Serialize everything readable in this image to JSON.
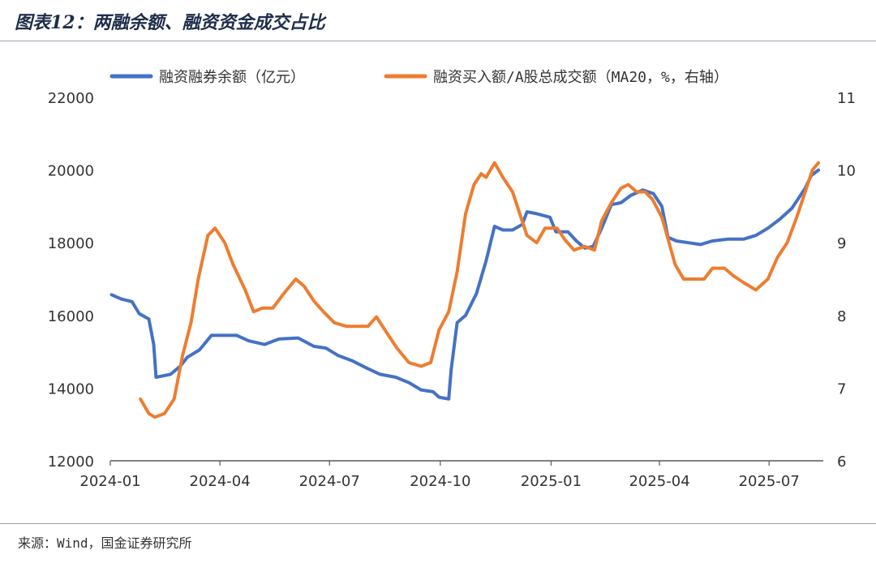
{
  "figure": {
    "title": "图表12：两融余额、融资资金成交占比",
    "source": "来源：Wind，国金证券研究所"
  },
  "chart_data": {
    "type": "line",
    "title": "图表12：两融余额、融资资金成交占比",
    "xlabel": "",
    "ylabel": "",
    "x_ticks": [
      "2024-01",
      "2024-04",
      "2024-07",
      "2024-10",
      "2025-01",
      "2025-04",
      "2025-07"
    ],
    "x_range": [
      "2024-01-01",
      "2025-08-15"
    ],
    "ylim_left": [
      12000,
      22000
    ],
    "ylim_right": [
      6,
      11
    ],
    "yticks_left": [
      12000,
      14000,
      16000,
      18000,
      20000,
      22000
    ],
    "yticks_right": [
      6,
      7,
      8,
      9,
      10,
      11
    ],
    "grid": false,
    "legend_position": "top",
    "colors": {
      "left_series": "#4472c4",
      "right_series": "#ed7d31"
    },
    "series": [
      {
        "name": "融资融券余额（亿元）",
        "axis": "left",
        "points": [
          [
            "2024-01-02",
            16570
          ],
          [
            "2024-01-10",
            16450
          ],
          [
            "2024-01-19",
            16380
          ],
          [
            "2024-01-25",
            16050
          ],
          [
            "2024-02-02",
            15900
          ],
          [
            "2024-02-06",
            15200
          ],
          [
            "2024-02-08",
            14300
          ],
          [
            "2024-02-20",
            14380
          ],
          [
            "2024-02-28",
            14600
          ],
          [
            "2024-03-05",
            14850
          ],
          [
            "2024-03-15",
            15050
          ],
          [
            "2024-03-25",
            15450
          ],
          [
            "2024-04-05",
            15450
          ],
          [
            "2024-04-15",
            15450
          ],
          [
            "2024-04-25",
            15300
          ],
          [
            "2024-05-08",
            15200
          ],
          [
            "2024-05-20",
            15350
          ],
          [
            "2024-06-05",
            15380
          ],
          [
            "2024-06-18",
            15150
          ],
          [
            "2024-06-28",
            15100
          ],
          [
            "2024-07-08",
            14900
          ],
          [
            "2024-07-20",
            14750
          ],
          [
            "2024-08-01",
            14550
          ],
          [
            "2024-08-12",
            14380
          ],
          [
            "2024-08-25",
            14300
          ],
          [
            "2024-09-05",
            14150
          ],
          [
            "2024-09-15",
            13950
          ],
          [
            "2024-09-25",
            13900
          ],
          [
            "2024-09-30",
            13750
          ],
          [
            "2024-10-08",
            13700
          ],
          [
            "2024-10-10",
            14500
          ],
          [
            "2024-10-15",
            15800
          ],
          [
            "2024-10-22",
            16000
          ],
          [
            "2024-10-31",
            16600
          ],
          [
            "2024-11-08",
            17500
          ],
          [
            "2024-11-15",
            18450
          ],
          [
            "2024-11-22",
            18350
          ],
          [
            "2024-11-30",
            18350
          ],
          [
            "2024-12-08",
            18500
          ],
          [
            "2024-12-12",
            18850
          ],
          [
            "2024-12-20",
            18800
          ],
          [
            "2024-12-31",
            18700
          ],
          [
            "2025-01-05",
            18300
          ],
          [
            "2025-01-15",
            18300
          ],
          [
            "2025-01-22",
            18050
          ],
          [
            "2025-01-29",
            17850
          ],
          [
            "2025-02-05",
            17900
          ],
          [
            "2025-02-12",
            18400
          ],
          [
            "2025-02-20",
            19050
          ],
          [
            "2025-02-28",
            19100
          ],
          [
            "2025-03-08",
            19300
          ],
          [
            "2025-03-18",
            19450
          ],
          [
            "2025-03-27",
            19350
          ],
          [
            "2025-04-03",
            19000
          ],
          [
            "2025-04-08",
            18150
          ],
          [
            "2025-04-15",
            18050
          ],
          [
            "2025-04-25",
            18000
          ],
          [
            "2025-05-05",
            17950
          ],
          [
            "2025-05-15",
            18050
          ],
          [
            "2025-05-28",
            18100
          ],
          [
            "2025-06-10",
            18100
          ],
          [
            "2025-06-20",
            18200
          ],
          [
            "2025-06-30",
            18400
          ],
          [
            "2025-07-10",
            18650
          ],
          [
            "2025-07-20",
            18950
          ],
          [
            "2025-07-31",
            19500
          ],
          [
            "2025-08-05",
            19850
          ],
          [
            "2025-08-11",
            20000
          ]
        ]
      },
      {
        "name": "融资买入额/A股总成交额（MA20，%，右轴）",
        "axis": "right",
        "points": [
          [
            "2024-01-26",
            6.85
          ],
          [
            "2024-02-02",
            6.65
          ],
          [
            "2024-02-07",
            6.6
          ],
          [
            "2024-02-15",
            6.65
          ],
          [
            "2024-02-23",
            6.85
          ],
          [
            "2024-03-01",
            7.45
          ],
          [
            "2024-03-08",
            7.9
          ],
          [
            "2024-03-14",
            8.5
          ],
          [
            "2024-03-22",
            9.1
          ],
          [
            "2024-03-28",
            9.2
          ],
          [
            "2024-04-05",
            9.0
          ],
          [
            "2024-04-12",
            8.7
          ],
          [
            "2024-04-22",
            8.35
          ],
          [
            "2024-04-29",
            8.05
          ],
          [
            "2024-05-06",
            8.1
          ],
          [
            "2024-05-15",
            8.1
          ],
          [
            "2024-05-24",
            8.3
          ],
          [
            "2024-06-03",
            8.5
          ],
          [
            "2024-06-10",
            8.4
          ],
          [
            "2024-06-18",
            8.2
          ],
          [
            "2024-06-26",
            8.05
          ],
          [
            "2024-07-05",
            7.9
          ],
          [
            "2024-07-15",
            7.85
          ],
          [
            "2024-07-25",
            7.85
          ],
          [
            "2024-08-02",
            7.85
          ],
          [
            "2024-08-09",
            7.98
          ],
          [
            "2024-08-18",
            7.75
          ],
          [
            "2024-08-26",
            7.55
          ],
          [
            "2024-09-05",
            7.35
          ],
          [
            "2024-09-15",
            7.3
          ],
          [
            "2024-09-23",
            7.35
          ],
          [
            "2024-09-30",
            7.8
          ],
          [
            "2024-10-08",
            8.05
          ],
          [
            "2024-10-15",
            8.6
          ],
          [
            "2024-10-22",
            9.4
          ],
          [
            "2024-10-29",
            9.8
          ],
          [
            "2024-11-04",
            9.95
          ],
          [
            "2024-11-08",
            9.9
          ],
          [
            "2024-11-15",
            10.1
          ],
          [
            "2024-11-22",
            9.9
          ],
          [
            "2024-11-30",
            9.7
          ],
          [
            "2024-12-06",
            9.4
          ],
          [
            "2024-12-12",
            9.1
          ],
          [
            "2024-12-20",
            9.0
          ],
          [
            "2024-12-27",
            9.2
          ],
          [
            "2025-01-06",
            9.2
          ],
          [
            "2025-01-12",
            9.05
          ],
          [
            "2025-01-20",
            8.9
          ],
          [
            "2025-01-29",
            8.95
          ],
          [
            "2025-02-06",
            8.9
          ],
          [
            "2025-02-12",
            9.3
          ],
          [
            "2025-02-20",
            9.55
          ],
          [
            "2025-02-28",
            9.75
          ],
          [
            "2025-03-06",
            9.8
          ],
          [
            "2025-03-13",
            9.7
          ],
          [
            "2025-03-20",
            9.7
          ],
          [
            "2025-03-26",
            9.6
          ],
          [
            "2025-04-03",
            9.35
          ],
          [
            "2025-04-09",
            9.0
          ],
          [
            "2025-04-14",
            8.7
          ],
          [
            "2025-04-21",
            8.5
          ],
          [
            "2025-05-01",
            8.5
          ],
          [
            "2025-05-08",
            8.5
          ],
          [
            "2025-05-15",
            8.65
          ],
          [
            "2025-05-25",
            8.65
          ],
          [
            "2025-06-01",
            8.55
          ],
          [
            "2025-06-10",
            8.45
          ],
          [
            "2025-06-20",
            8.35
          ],
          [
            "2025-06-30",
            8.5
          ],
          [
            "2025-07-08",
            8.8
          ],
          [
            "2025-07-16",
            9.0
          ],
          [
            "2025-07-24",
            9.35
          ],
          [
            "2025-07-31",
            9.7
          ],
          [
            "2025-08-06",
            10.0
          ],
          [
            "2025-08-11",
            10.1
          ]
        ]
      }
    ]
  }
}
